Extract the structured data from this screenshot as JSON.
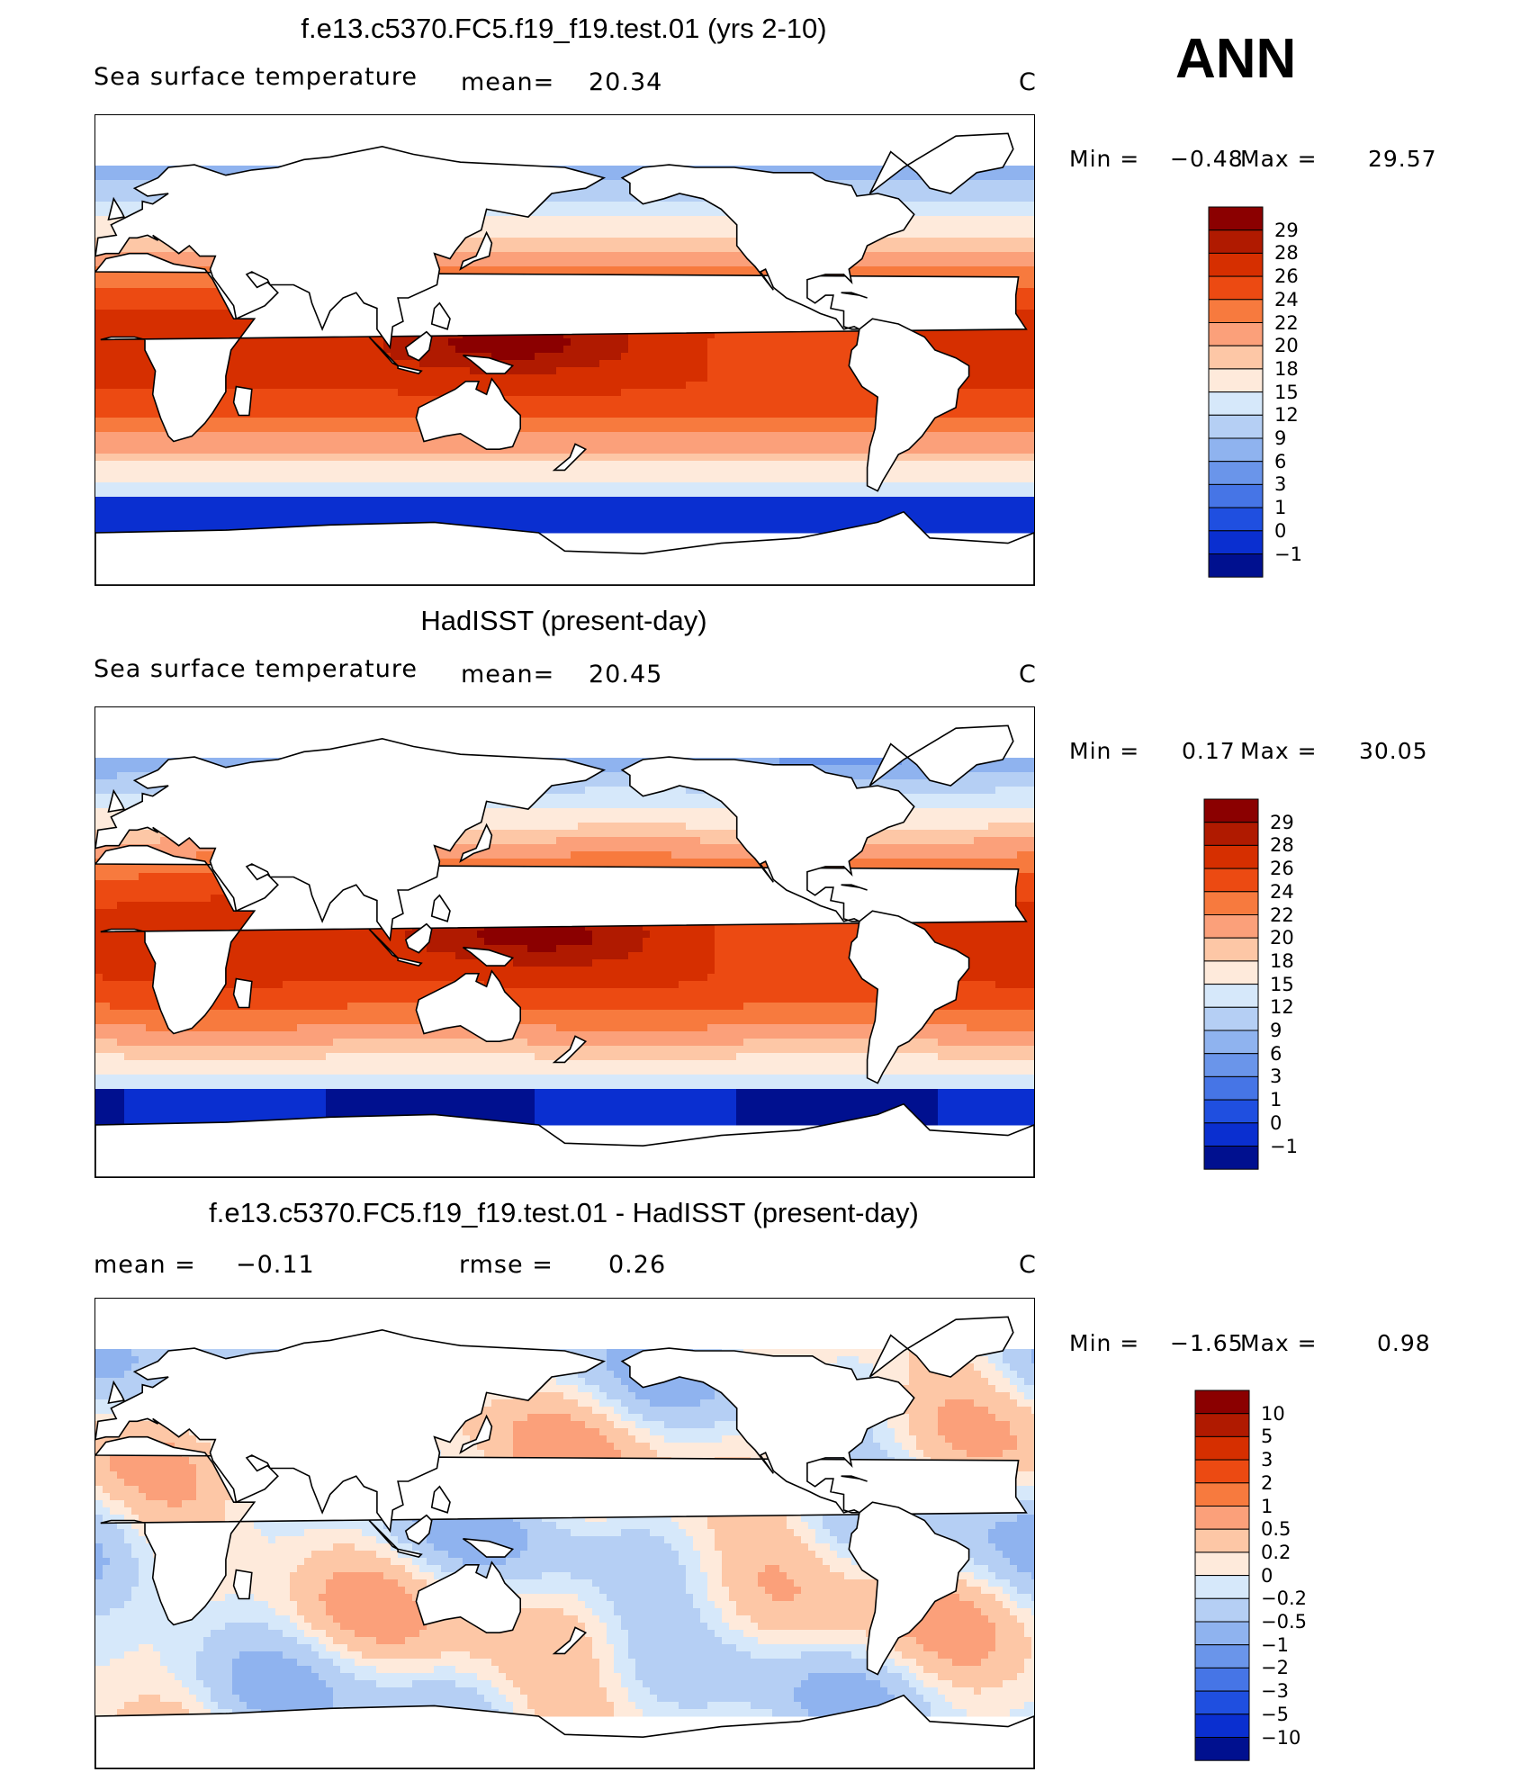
{
  "season": "ANN",
  "panels": [
    {
      "title": "f.e13.c5370.FC5.f19_f19.test.01 (yrs 2-10)",
      "left_text": "Sea surface temperature",
      "mid_label": "mean=",
      "mid_value": "20.34",
      "units": "C",
      "min_label": "Min =",
      "min_value": "−0.48",
      "max_label": "Max =",
      "max_value": "29.57"
    },
    {
      "title": "HadISST (present-day)",
      "left_text": "Sea surface temperature",
      "mid_label": "mean=",
      "mid_value": "20.45",
      "units": "C",
      "min_label": "Min =",
      "min_value": "0.17",
      "max_label": "Max =",
      "max_value": "30.05"
    },
    {
      "title": "f.e13.c5370.FC5.f19_f19.test.01 - HadISST (present-day)",
      "left_text": "mean =",
      "left_value": "−0.11",
      "mid_label": "rmse =",
      "mid_value": "0.26",
      "units": "C",
      "min_label": "Min =",
      "min_value": "−1.65",
      "max_label": "Max =",
      "max_value": "0.98"
    }
  ],
  "chart_data": [
    {
      "type": "heatmap",
      "title": "f.e13.c5370.FC5.f19_f19.test.01 (yrs 2-10)",
      "variable": "Sea surface temperature",
      "units": "C",
      "mean": 20.34,
      "min": -0.48,
      "max": 29.57,
      "colorbar_levels": [
        "29",
        "28",
        "26",
        "24",
        "22",
        "20",
        "18",
        "15",
        "12",
        "9",
        "6",
        "3",
        "1",
        "0",
        "−1"
      ],
      "colorbar_colors": [
        "#8b0000",
        "#b01a00",
        "#d62f00",
        "#ec4a12",
        "#f77a3e",
        "#fba07a",
        "#fdc7a6",
        "#feeadb",
        "#d6e8fa",
        "#b5cff4",
        "#8fb3ef",
        "#6a95ea",
        "#4675e6",
        "#1f4fe0",
        "#0a2fd0",
        "#00108f"
      ]
    },
    {
      "type": "heatmap",
      "title": "HadISST (present-day)",
      "variable": "Sea surface temperature",
      "units": "C",
      "mean": 20.45,
      "min": 0.17,
      "max": 30.05,
      "colorbar_levels": [
        "29",
        "28",
        "26",
        "24",
        "22",
        "20",
        "18",
        "15",
        "12",
        "9",
        "6",
        "3",
        "1",
        "0",
        "−1"
      ],
      "colorbar_colors": [
        "#8b0000",
        "#b01a00",
        "#d62f00",
        "#ec4a12",
        "#f77a3e",
        "#fba07a",
        "#fdc7a6",
        "#feeadb",
        "#d6e8fa",
        "#b5cff4",
        "#8fb3ef",
        "#6a95ea",
        "#4675e6",
        "#1f4fe0",
        "#0a2fd0",
        "#00108f"
      ]
    },
    {
      "type": "heatmap",
      "title": "f.e13.c5370.FC5.f19_f19.test.01 - HadISST (present-day)",
      "units": "C",
      "mean": -0.11,
      "rmse": 0.26,
      "min": -1.65,
      "max": 0.98,
      "colorbar_levels": [
        "10",
        "5",
        "3",
        "2",
        "1",
        "0.5",
        "0.2",
        "0",
        "−0.2",
        "−0.5",
        "−1",
        "−2",
        "−3",
        "−5",
        "−10"
      ],
      "colorbar_colors": [
        "#8b0000",
        "#b01a00",
        "#d62f00",
        "#ec4a12",
        "#f77a3e",
        "#fba07a",
        "#fdc7a6",
        "#feeadb",
        "#d6e8fa",
        "#b5cff4",
        "#8fb3ef",
        "#6a95ea",
        "#4675e6",
        "#1f4fe0",
        "#0a2fd0",
        "#00108f"
      ]
    }
  ]
}
